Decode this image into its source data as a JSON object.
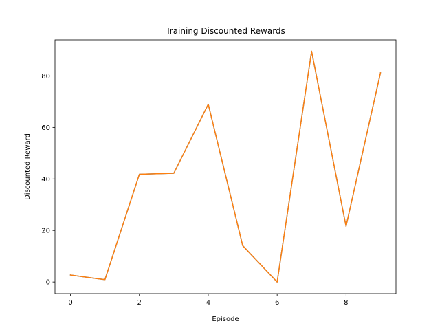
{
  "chart_data": {
    "type": "line",
    "title": "Training Discounted Rewards",
    "xlabel": "Episode",
    "ylabel": "Discounted Reward",
    "xlim": [
      -0.45,
      9.45
    ],
    "ylim": [
      -4.5,
      94.0
    ],
    "xticks": [
      0,
      2,
      4,
      6,
      8
    ],
    "yticks": [
      0,
      20,
      40,
      60,
      80
    ],
    "grid": false,
    "legend": "none",
    "x": [
      0,
      1,
      2,
      3,
      4,
      5,
      6,
      7,
      8,
      9
    ],
    "series": [
      {
        "color": "#1f77b4",
        "values": [
          2.7,
          0.9,
          41.8,
          42.2,
          69.0,
          14.1,
          0.0,
          89.6,
          21.6,
          81.2
        ]
      },
      {
        "color": "#ff7f0e",
        "values": [
          2.7,
          0.9,
          41.8,
          42.2,
          69.0,
          14.1,
          0.0,
          89.6,
          21.6,
          81.2
        ]
      }
    ]
  }
}
